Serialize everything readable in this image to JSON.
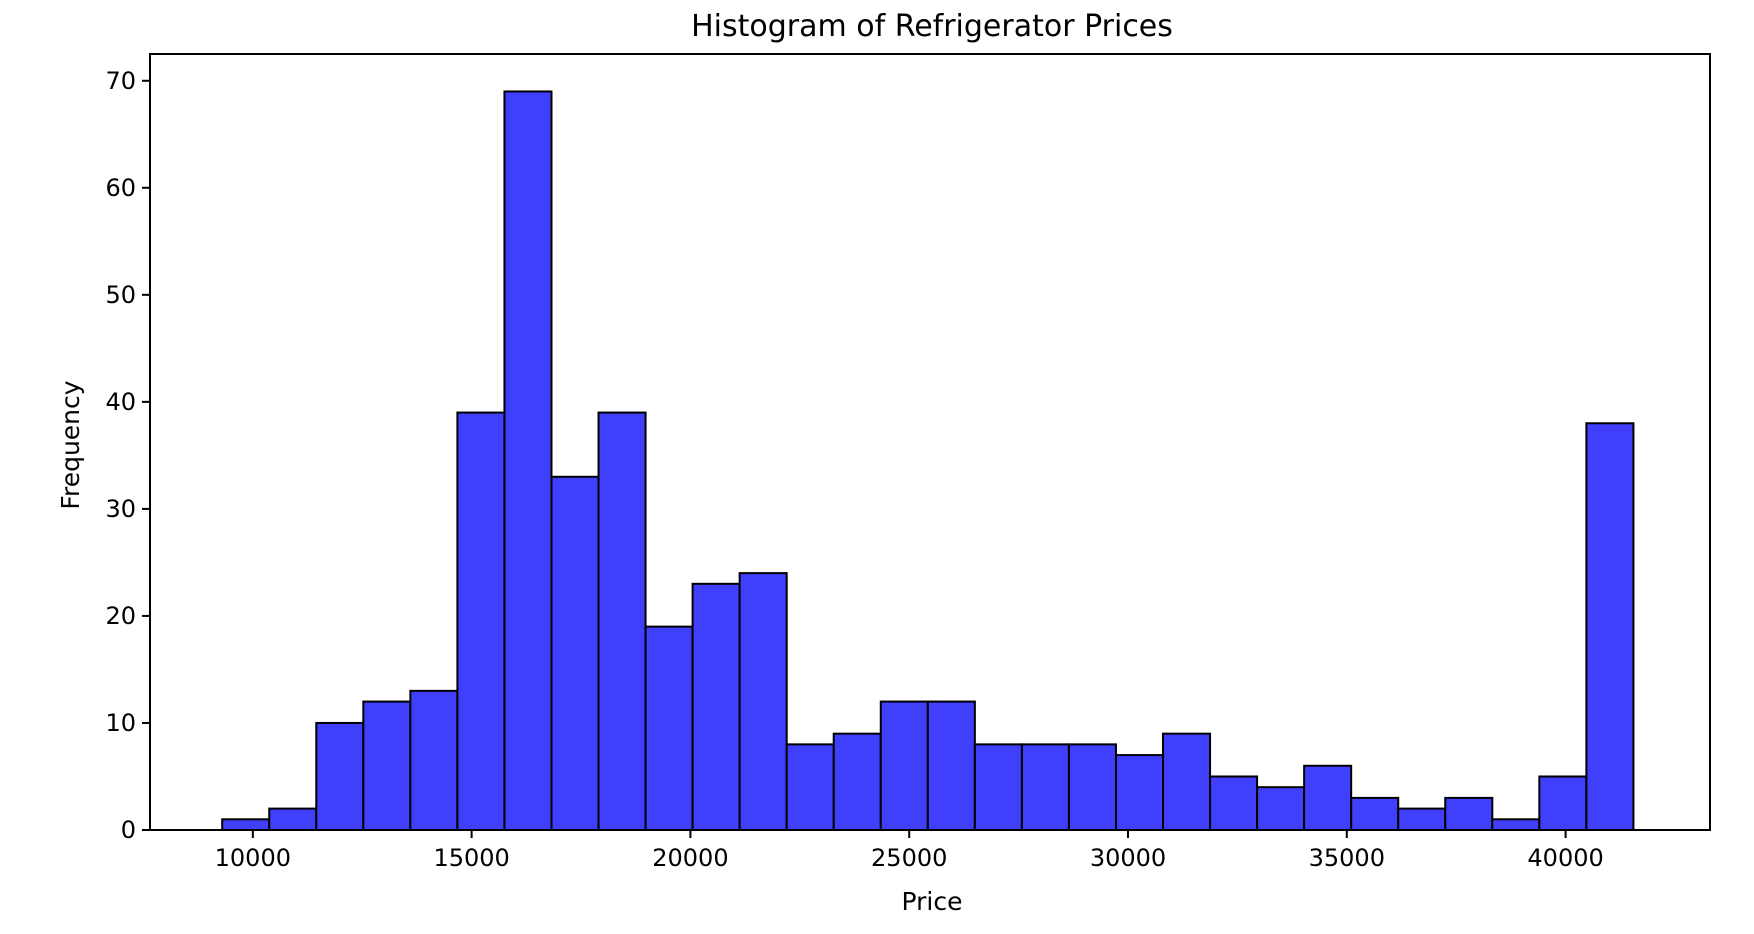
{
  "chart_data": {
    "type": "bar",
    "title": "Histogram of Refrigerator Prices",
    "xlabel": "Price",
    "ylabel": "Frequency",
    "xlim": [
      7650,
      43300
    ],
    "ylim": [
      0,
      72.5
    ],
    "xticks": [
      10000,
      15000,
      20000,
      25000,
      30000,
      35000,
      40000
    ],
    "yticks": [
      0,
      10,
      20,
      30,
      40,
      50,
      60,
      70
    ],
    "bar_color": "#3f3ffc",
    "edge_color": "#000000",
    "grid": false,
    "bins": [
      {
        "x0": 9300,
        "x1": 10375,
        "value": 1
      },
      {
        "x0": 10375,
        "x1": 11450,
        "value": 2
      },
      {
        "x0": 11450,
        "x1": 12525,
        "value": 10
      },
      {
        "x0": 12525,
        "x1": 13600,
        "value": 12
      },
      {
        "x0": 13600,
        "x1": 14675,
        "value": 13
      },
      {
        "x0": 14675,
        "x1": 15750,
        "value": 39
      },
      {
        "x0": 15750,
        "x1": 16825,
        "value": 69
      },
      {
        "x0": 16825,
        "x1": 17900,
        "value": 33
      },
      {
        "x0": 17900,
        "x1": 18975,
        "value": 39
      },
      {
        "x0": 18975,
        "x1": 20050,
        "value": 19
      },
      {
        "x0": 20050,
        "x1": 21125,
        "value": 23
      },
      {
        "x0": 21125,
        "x1": 22200,
        "value": 24
      },
      {
        "x0": 22200,
        "x1": 23275,
        "value": 8
      },
      {
        "x0": 23275,
        "x1": 24350,
        "value": 9
      },
      {
        "x0": 24350,
        "x1": 25425,
        "value": 12
      },
      {
        "x0": 25425,
        "x1": 26500,
        "value": 12
      },
      {
        "x0": 26500,
        "x1": 27575,
        "value": 8
      },
      {
        "x0": 27575,
        "x1": 28650,
        "value": 8
      },
      {
        "x0": 28650,
        "x1": 29725,
        "value": 8
      },
      {
        "x0": 29725,
        "x1": 30800,
        "value": 7
      },
      {
        "x0": 30800,
        "x1": 31875,
        "value": 9
      },
      {
        "x0": 31875,
        "x1": 32950,
        "value": 5
      },
      {
        "x0": 32950,
        "x1": 34025,
        "value": 4
      },
      {
        "x0": 34025,
        "x1": 35100,
        "value": 6
      },
      {
        "x0": 35100,
        "x1": 36175,
        "value": 3
      },
      {
        "x0": 36175,
        "x1": 37250,
        "value": 2
      },
      {
        "x0": 37250,
        "x1": 38325,
        "value": 3
      },
      {
        "x0": 38325,
        "x1": 39400,
        "value": 1
      },
      {
        "x0": 39400,
        "x1": 40475,
        "value": 5
      },
      {
        "x0": 40475,
        "x1": 41550,
        "value": 38
      }
    ]
  }
}
